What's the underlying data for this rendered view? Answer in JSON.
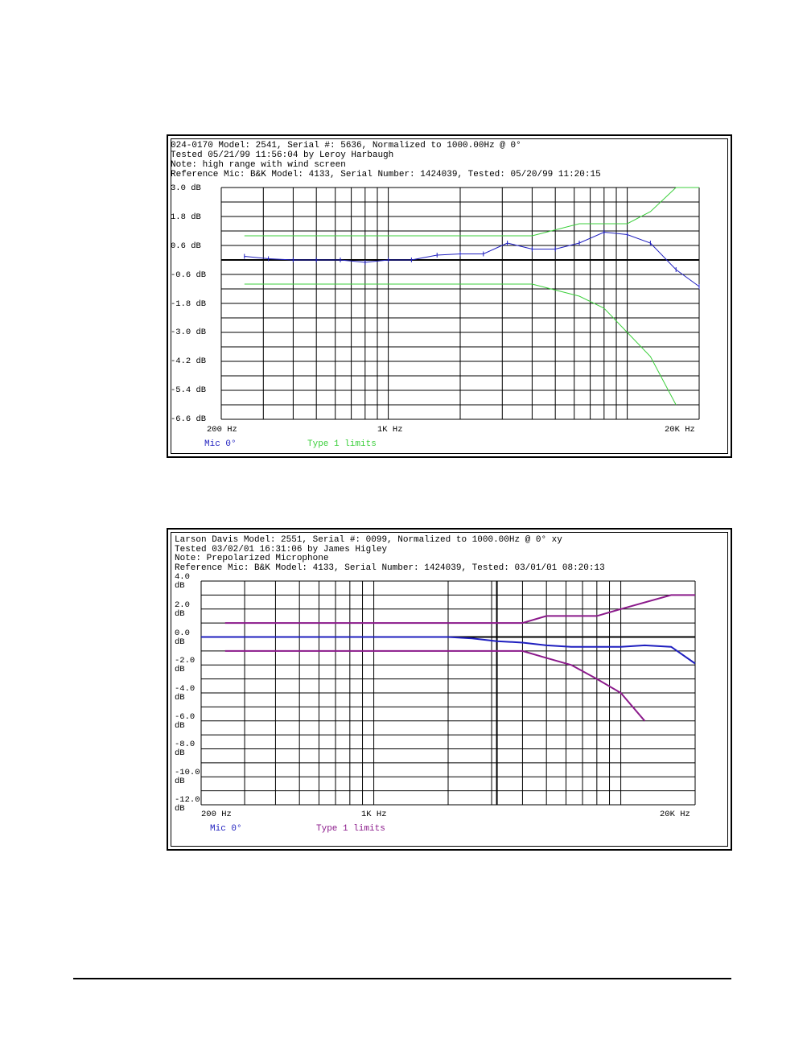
{
  "colors": {
    "mic_blue": "#1f1fbf",
    "limits_green": "#3ccf3c",
    "limits_purple": "#8b1a8b",
    "grid": "#000000"
  },
  "chart_data": [
    {
      "type": "line",
      "x_scale": "log",
      "header": [
        "024-0170 Model: 2541, Serial #: 5636, Normalized to 1000.00Hz @ 0°",
        "Tested 05/21/99 11:56:04 by Leroy Harbaugh",
        "Note: high range with wind screen",
        "Reference Mic: B&K Model: 4133, Serial Number: 1424039, Tested: 05/20/99 11:20:15"
      ],
      "y_tick_labels": [
        "3.0 dB",
        "1.8 dB",
        "0.6 dB",
        "-0.6 dB",
        "-1.8 dB",
        "-3.0 dB",
        "-4.2 dB",
        "-5.4 dB",
        "-6.6 dB"
      ],
      "x_tick_labels": [
        "200 Hz",
        "1K Hz",
        "20K Hz"
      ],
      "xlim": [
        200,
        20000
      ],
      "ylim": [
        -6.6,
        3.0
      ],
      "legend": [
        {
          "label": "Mic 0°",
          "color": "#1f1fbf"
        },
        {
          "label": "Type 1 limits",
          "color": "#3ccf3c"
        }
      ],
      "series": [
        {
          "name": "Mic 0°",
          "color": "#1f1fbf",
          "width": 1,
          "markers": true,
          "x": [
            250,
            315,
            400,
            500,
            630,
            800,
            1000,
            1250,
            1600,
            2000,
            2500,
            3150,
            4000,
            5000,
            6300,
            8000,
            10000,
            12500,
            16000,
            20000
          ],
          "y": [
            0.15,
            0.05,
            0.0,
            0.0,
            0.0,
            -0.1,
            0.0,
            0.0,
            0.2,
            0.25,
            0.25,
            0.7,
            0.45,
            0.45,
            0.7,
            1.15,
            1.05,
            0.7,
            -0.4,
            -1.1
          ]
        },
        {
          "name": "Type 1 limits",
          "color": "#3ccf3c",
          "width": 1,
          "markers": false,
          "x": [
            250,
            4000,
            6300,
            8000,
            10000,
            12500,
            16000,
            20000
          ],
          "y": [
            1.0,
            1.0,
            1.5,
            1.5,
            1.5,
            2.0,
            3.0,
            3.0
          ]
        },
        {
          "name": "Type 1 limits",
          "color": "#3ccf3c",
          "width": 1,
          "markers": false,
          "x": [
            250,
            4000,
            6300,
            8000,
            10000,
            12500,
            16000
          ],
          "y": [
            -1.0,
            -1.0,
            -1.5,
            -2.0,
            -3.0,
            -4.0,
            -6.0
          ]
        }
      ]
    },
    {
      "type": "line",
      "x_scale": "log",
      "header": [
        "Larson Davis Model: 2551, Serial #: 0099, Normalized to 1000.00Hz @ 0° xy",
        "Tested 03/02/01 16:31:06 by James Higley",
        "Note: Prepolarized Microphone",
        "Reference Mic: B&K Model: 4133, Serial Number: 1424039, Tested: 03/01/01 08:20:13"
      ],
      "y_tick_labels": [
        "4.0\ndB",
        "2.0\ndB",
        "0.0\ndB",
        "-2.0\ndB",
        "-4.0\ndB",
        "-6.0\ndB",
        "-8.0\ndB",
        "-10.0\ndB",
        "-12.0\ndB"
      ],
      "x_tick_labels": [
        "200 Hz",
        "1K Hz",
        "20K Hz"
      ],
      "xlim": [
        200,
        20000
      ],
      "ylim": [
        -12.0,
        4.0
      ],
      "legend": [
        {
          "label": "Mic 0°",
          "color": "#1f1fbf"
        },
        {
          "label": "Type 1 limits",
          "color": "#8b1a8b"
        }
      ],
      "series": [
        {
          "name": "Mic 0°",
          "color": "#1f1fbf",
          "width": 2,
          "markers": false,
          "x": [
            200,
            250,
            315,
            400,
            500,
            630,
            800,
            1000,
            1250,
            1600,
            2000,
            2500,
            3150,
            4000,
            5000,
            6300,
            8000,
            10000,
            12500,
            16000,
            20000
          ],
          "y": [
            0.0,
            0.0,
            0.0,
            0.0,
            0.0,
            0.0,
            0.0,
            0.0,
            0.0,
            0.0,
            0.0,
            -0.1,
            -0.3,
            -0.4,
            -0.6,
            -0.7,
            -0.7,
            -0.7,
            -0.6,
            -0.7,
            -1.9
          ]
        },
        {
          "name": "Type 1 limits",
          "color": "#8b1a8b",
          "width": 2,
          "markers": false,
          "x": [
            250,
            4000,
            5000,
            8000,
            10000,
            16000,
            20000
          ],
          "y": [
            1.0,
            1.0,
            1.5,
            1.5,
            2.0,
            3.0,
            3.0
          ]
        },
        {
          "name": "Type 1 limits",
          "color": "#8b1a8b",
          "width": 2,
          "markers": false,
          "x": [
            250,
            4000,
            5000,
            6300,
            8000,
            10000,
            12500
          ],
          "y": [
            -1.0,
            -1.0,
            -1.5,
            -2.0,
            -3.0,
            -4.0,
            -6.0
          ]
        }
      ]
    }
  ]
}
